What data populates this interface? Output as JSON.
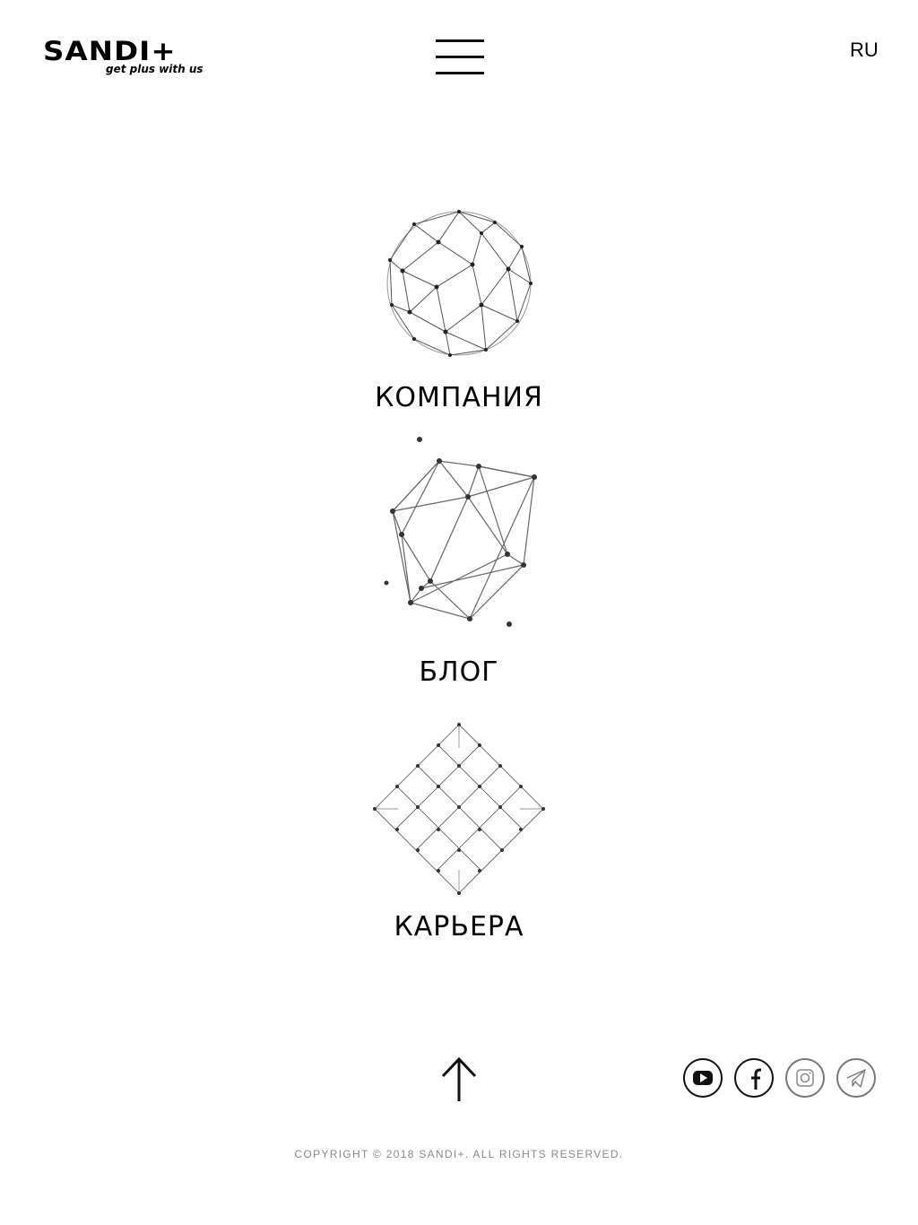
{
  "header": {
    "logo_text": "SANDI+",
    "logo_tagline": "get plus with us",
    "language": "RU"
  },
  "sections": [
    {
      "label": "КОМПАНИЯ",
      "icon": "geodesic-sphere-icon"
    },
    {
      "label": "БЛОГ",
      "icon": "polyhedron-network-icon"
    },
    {
      "label": "КАРЬЕРА",
      "icon": "diamond-grid-icon"
    }
  ],
  "footer": {
    "scroll_top_icon": "arrow-up-icon",
    "socials": [
      {
        "name": "youtube",
        "icon": "youtube-icon"
      },
      {
        "name": "facebook",
        "icon": "facebook-icon"
      },
      {
        "name": "instagram",
        "icon": "instagram-icon"
      },
      {
        "name": "telegram",
        "icon": "telegram-icon"
      }
    ],
    "copyright": "COPYRIGHT © 2018 SANDI+. ALL RIGHTS RESERVED."
  }
}
